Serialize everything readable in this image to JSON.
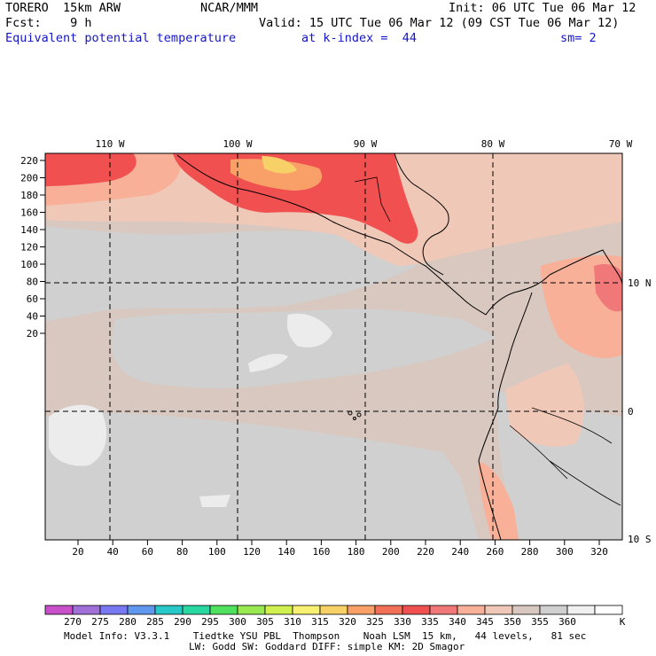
{
  "header": {
    "model": "TORERO  15km ARW",
    "org": "NCAR/MMM",
    "init": "Init: 06 UTC Tue 06 Mar 12",
    "fcst": "Fcst:    9 h",
    "valid": "Valid: 15 UTC Tue 06 Mar 12 (09 CST Tue 06 Mar 12)",
    "field": "Equivalent potential temperature",
    "level": "at k-index =  44",
    "smooth": "sm= 2"
  },
  "axes": {
    "lon_labels": [
      "110 W",
      "100 W",
      "90 W",
      "80 W",
      "70 W"
    ],
    "lat_labels": [
      "10 N",
      "0",
      "10 S"
    ],
    "y_ticks": [
      "220",
      "200",
      "180",
      "160",
      "140",
      "120",
      "100",
      "80",
      "60",
      "40",
      "20"
    ],
    "x_ticks": [
      "20",
      "40",
      "60",
      "80",
      "100",
      "120",
      "140",
      "160",
      "180",
      "200",
      "220",
      "240",
      "260",
      "280",
      "300",
      "320"
    ]
  },
  "colorbar": {
    "labels": [
      "270",
      "275",
      "280",
      "285",
      "290",
      "295",
      "300",
      "305",
      "310",
      "315",
      "320",
      "325",
      "330",
      "335",
      "340",
      "345",
      "350",
      "355",
      "360",
      "K"
    ],
    "colors": [
      "#c850c8",
      "#a070d8",
      "#7878f0",
      "#6098f0",
      "#28c8c8",
      "#28d8a0",
      "#50e060",
      "#98e850",
      "#d0f050",
      "#f8f070",
      "#f8d068",
      "#f8a068",
      "#f07058",
      "#f05050",
      "#f07878",
      "#f8b098",
      "#f0c8b8",
      "#d8c8c0",
      "#d0d0d0",
      "#f0f0f0",
      "#ffffff"
    ]
  },
  "footer": {
    "line1": "Model Info: V3.3.1    Tiedtke YSU PBL  Thompson    Noah LSM  15 km,   44 levels,   81 sec",
    "line2": "LW: Godd SW: Goddard DIFF: simple KM: 2D Smagor"
  }
}
